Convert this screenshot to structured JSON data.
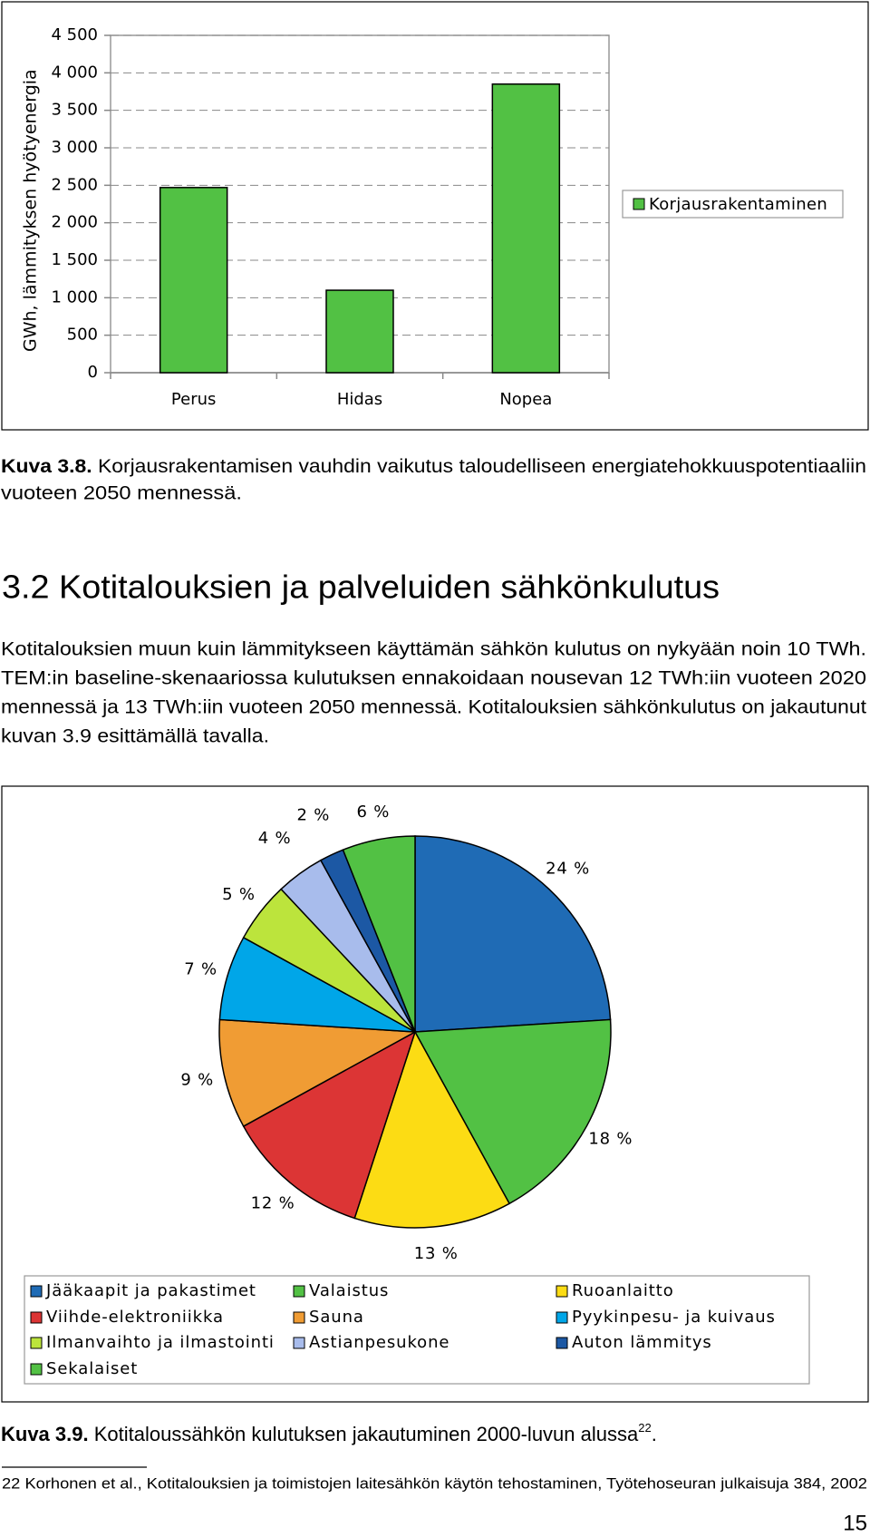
{
  "chart_data": [
    {
      "type": "bar",
      "y_label": "GWh, lämmityksen hyötyenergia",
      "categories": [
        "Perus",
        "Hidas",
        "Nopea"
      ],
      "series": [
        {
          "name": "Korjausrakentaminen",
          "color": "#52c144",
          "values": [
            2470,
            1100,
            3850
          ]
        }
      ],
      "ylim": [
        0,
        4500
      ],
      "yticks": [
        0,
        500,
        {
          "value": 1000,
          "label": "1 000"
        },
        {
          "value": 1500,
          "label": "1 500"
        },
        {
          "value": 2000,
          "label": "2 000"
        },
        {
          "value": 2500,
          "label": "2 500"
        },
        {
          "value": 3000,
          "label": "3 000"
        },
        {
          "value": 3500,
          "label": "3 500"
        },
        {
          "value": 4000,
          "label": "4 000"
        },
        {
          "value": 4500,
          "label": "4 500"
        }
      ],
      "grid": true,
      "legend": "right"
    },
    {
      "type": "pie",
      "categories": [
        "Jääkaapit ja pakastimet",
        "Valaistus",
        "Ruoanlaitto",
        "Viihde-elektroniikka",
        "Sauna",
        "Pyykinpesu- ja kuivaus",
        "Ilmanvaihto ja ilmastointi",
        "Astianpesukone",
        "Auton lämmitys",
        "Sekalaiset"
      ],
      "values": [
        24,
        18,
        13,
        12,
        9,
        7,
        5,
        4,
        2,
        6
      ],
      "value_labels": [
        "24 %",
        "18 %",
        "13 %",
        "12 %",
        "9 %",
        "7 %",
        "5 %",
        "4 %",
        "2 %",
        "6 %"
      ],
      "colors": [
        "#1f6bb5",
        "#52c144",
        "#fcdc14",
        "#dc3535",
        "#f09c34",
        "#00a6e8",
        "#bce43c",
        "#a8bcec",
        "#1c58a4",
        "#52c144"
      ],
      "legend": "bottom"
    }
  ],
  "document": {
    "figure_3_8_caption": {
      "label": "Kuva 3.8.",
      "lines": [
        "Korjausrakentamisen vauhdin vaikutus taloudelliseen energiatehokkuuspotentiaaliin",
        "vuoteen 2050 mennessä."
      ]
    },
    "heading": "3.2 Kotitalouksien ja palveluiden sähkönkulutus",
    "paragraph": [
      "Kotitalouksien muun kuin lämmitykseen käyttämän sähkön kulutus on nykyään noin 10 TWh.",
      "TEM:in baseline-skenaariossa kulutuksen ennakoidaan nousevan 12 TWh:iin vuoteen 2020",
      "mennessä ja 13 TWh:iin vuoteen 2050 mennessä. Kotitalouksien sähkönkulutus on jakautunut",
      "kuvan 3.9 esittämällä tavalla."
    ],
    "figure_3_9_caption": {
      "label": "Kuva 3.9.",
      "text": "Kotitaloussähkön kulutuksen jakautuminen 2000-luvun alussa",
      "footnote_ref": "22",
      "end": "."
    },
    "footnote": "22 Korhonen et al., Kotitalouksien ja toimistojen laitesähkön käytön tehostaminen, Työtehoseuran julkaisuja 384, 2002",
    "page_number": "15"
  }
}
